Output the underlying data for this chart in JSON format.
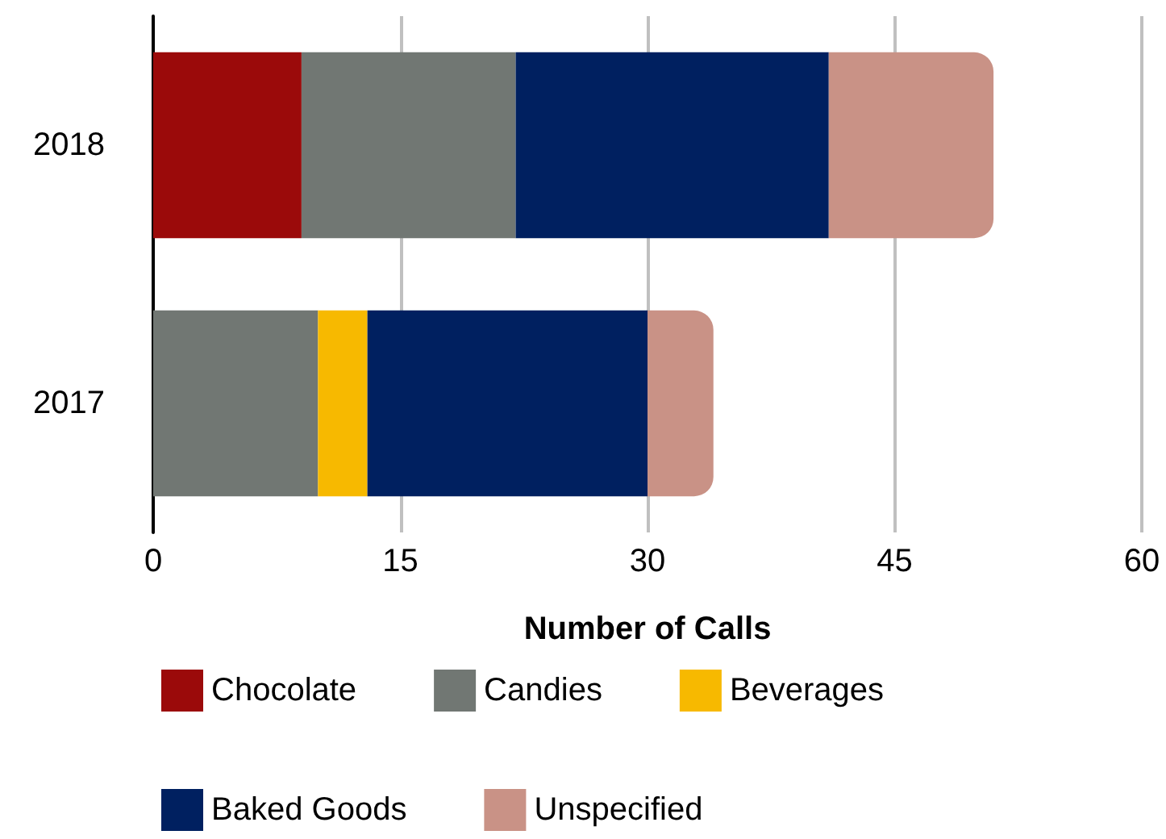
{
  "chart_data": {
    "type": "bar",
    "orientation": "horizontal",
    "stacked": true,
    "categories": [
      "2018",
      "2017"
    ],
    "series": [
      {
        "name": "Chocolate",
        "color": "#9b0a0a",
        "values": [
          9,
          null
        ]
      },
      {
        "name": "Candies",
        "color": "#717773",
        "values": [
          13,
          10
        ]
      },
      {
        "name": "Beverages",
        "color": "#f7b900",
        "values": [
          null,
          3
        ]
      },
      {
        "name": "Baked Goods",
        "color": "#002060",
        "values": [
          19,
          17
        ]
      },
      {
        "name": "Unspecified",
        "color": "#c99286",
        "values": [
          10,
          4
        ]
      }
    ],
    "xlabel": "Number of Calls",
    "xlim": [
      0,
      60
    ],
    "xticks": [
      0,
      15,
      30,
      45,
      60
    ],
    "grid": "x",
    "legend": "bottom"
  }
}
